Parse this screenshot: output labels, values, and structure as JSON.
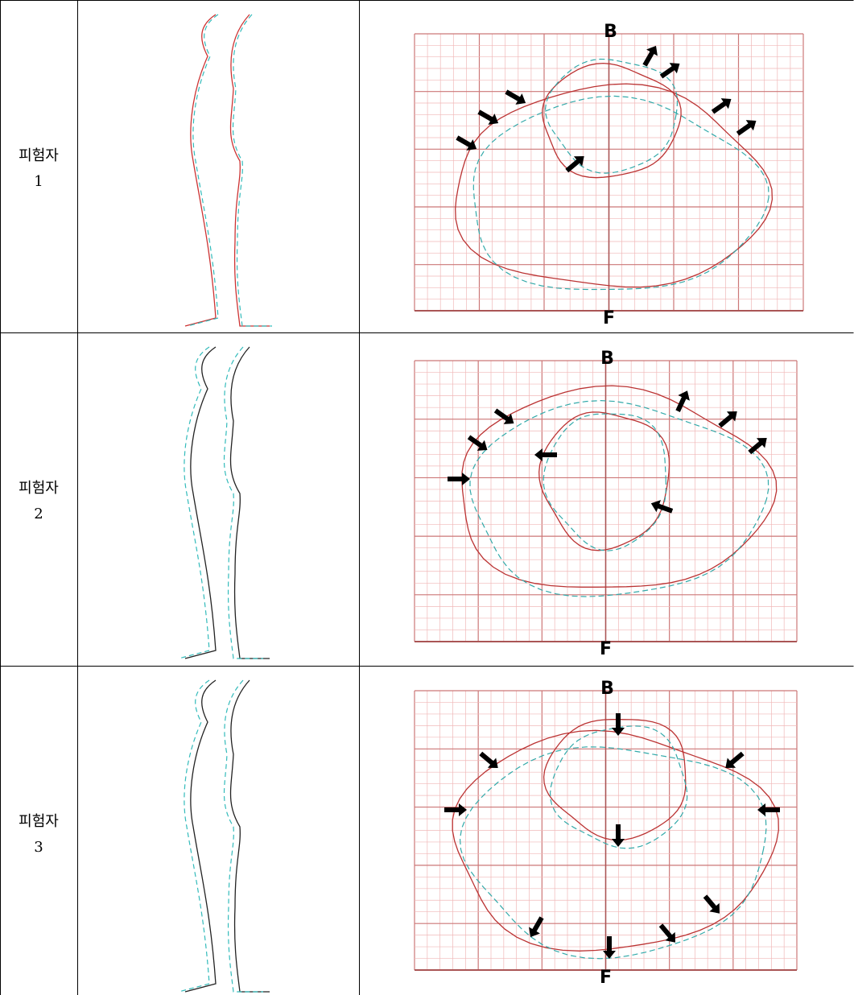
{
  "table": {
    "rows": [
      {
        "subject": "피험자",
        "number": "1",
        "top_label": "B",
        "bottom_label": "F"
      },
      {
        "subject": "피험자",
        "number": "2",
        "top_label": "B",
        "bottom_label": "F"
      },
      {
        "subject": "피험자",
        "number": "3",
        "top_label": "B",
        "bottom_label": "F"
      }
    ]
  }
}
